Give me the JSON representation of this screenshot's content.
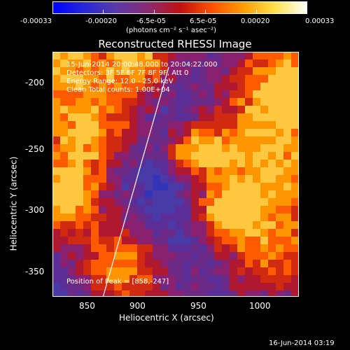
{
  "colorbar": {
    "labels": [
      "-0.00033",
      "-0.00020",
      "-6.5e-05",
      "6.5e-05",
      "0.00020",
      "0.00033"
    ],
    "units": "(photons cm⁻² s⁻¹ asec⁻²)",
    "stops": [
      "#0000ff",
      "#2828d8",
      "#5a3aa8",
      "#8a2a70",
      "#c01010",
      "#ff5000",
      "#ff9c00",
      "#ffe24a",
      "#ffffff"
    ]
  },
  "title": "Reconstructed RHESSI Image",
  "info": {
    "line1": "15-Jun-2014 20:00:48.000 to 20:04:22.000",
    "line2": "Detectors: 3F 5F 6F 7F 8F 9F, Att 0",
    "line3": "Energy Range: 12.0 - 25.0 keV",
    "line4": "Clean     Total counts: 1.00E+04"
  },
  "peak": "Position of Peak = [858,-247]",
  "axes": {
    "xlabel": "Heliocentric X (arcsec)",
    "ylabel": "Heliocentric Y (arcsec)",
    "xticks": [
      "850",
      "900",
      "950",
      "1000"
    ],
    "yticks": [
      "-200",
      "-250",
      "-300",
      "-350"
    ]
  },
  "timestamp": "16-Jun-2014 03:19",
  "chart_data": {
    "type": "heatmap",
    "title": "Reconstructed RHESSI Image",
    "xlabel": "Heliocentric X (arcsec)",
    "ylabel": "Heliocentric Y (arcsec)",
    "xlim": [
      830,
      1025
    ],
    "ylim": [
      -370,
      -178
    ],
    "limb_line": {
      "x": [
        870,
        922
      ],
      "y": [
        -370,
        -190
      ]
    },
    "colorbar_range": [
      -0.00033,
      0.00033
    ]
  }
}
